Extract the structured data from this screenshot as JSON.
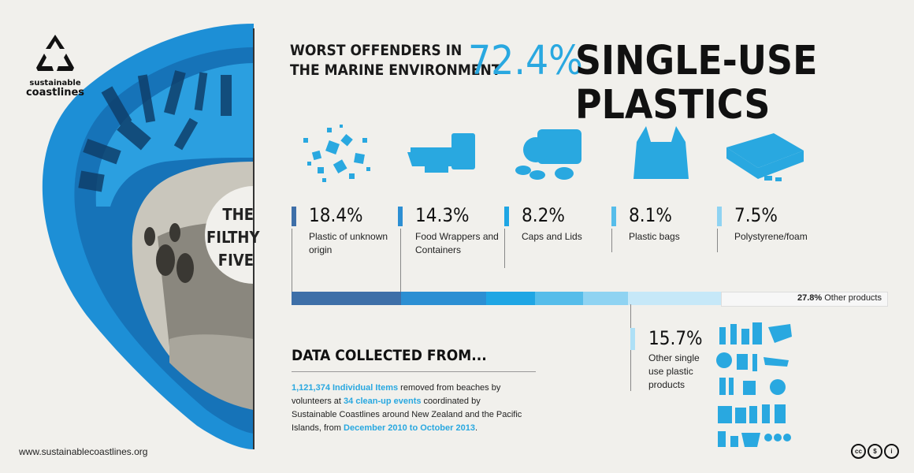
{
  "brand": {
    "line1": "sustainable",
    "line2": "coastlines"
  },
  "left_panel": {
    "line1": "THE",
    "line2": "FILTHY",
    "line3": "FIVE"
  },
  "header": {
    "line1": "WORST OFFENDERS IN",
    "line2": "THE MARINE ENVIRONMENT",
    "percent": "72.4%",
    "title": "SINGLE-USE PLASTICS"
  },
  "categories": [
    {
      "value": "18.4%",
      "label": "Plastic of unknown origin",
      "color": "#3e6fa8",
      "icon": "plastic-fragments-icon"
    },
    {
      "value": "14.3%",
      "label": "Food Wrappers and Containers",
      "color": "#2c8fd3",
      "icon": "food-container-icon"
    },
    {
      "value": "8.2%",
      "label": "Caps and Lids",
      "color": "#1fa6e4",
      "icon": "caps-lids-icon"
    },
    {
      "value": "8.1%",
      "label": "Plastic bags",
      "color": "#56bdea",
      "icon": "plastic-bag-icon"
    },
    {
      "value": "7.5%",
      "label": "Polystyrene/foam",
      "color": "#8fd3f2",
      "icon": "polystyrene-icon"
    }
  ],
  "other_singleuse": {
    "value": "15.7%",
    "label": "Other single use plastic products",
    "color": "#c6e8f8"
  },
  "other_products": {
    "value": "27.8%",
    "label": "Other products"
  },
  "chart_data": {
    "type": "bar",
    "title": "72.4% SINGLE-USE PLASTICS",
    "categories": [
      "Plastic of unknown origin",
      "Food Wrappers and Containers",
      "Caps and Lids",
      "Plastic bags",
      "Polystyrene/foam",
      "Other single use plastic products",
      "Other products"
    ],
    "values": [
      18.4,
      14.3,
      8.2,
      8.1,
      7.5,
      15.7,
      27.8
    ],
    "unit": "%",
    "colors": [
      "#3e6fa8",
      "#2c8fd3",
      "#1fa6e4",
      "#56bdea",
      "#8fd3f2",
      "#c6e8f8",
      "#f7f7f7"
    ]
  },
  "data_collected": {
    "title": "DATA COLLECTED FROM...",
    "items": "1,121,374 Individual Items",
    "t1": " removed from beaches by volunteers at ",
    "events": "34 clean-up events",
    "t2": " coordinated by Sustainable Coastlines around New Zealand and the Pacific Islands, from ",
    "dates": "December 2010 to October 2013",
    "t3": "."
  },
  "footer": {
    "url": "www.sustainablecoastlines.org"
  },
  "license": {
    "cc": "cc",
    "nc": "$",
    "by": "i"
  }
}
